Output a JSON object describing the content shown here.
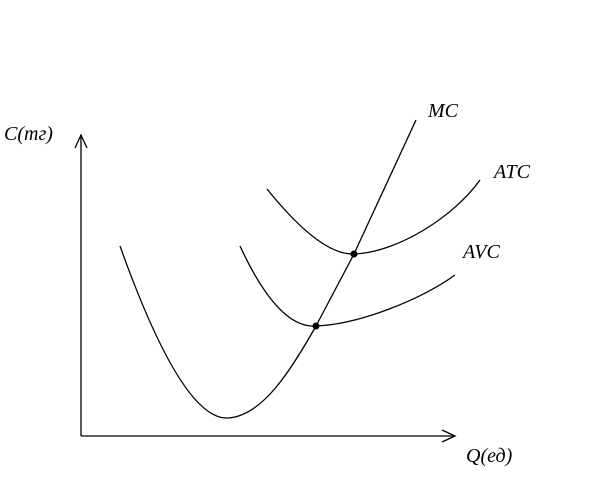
{
  "axes": {
    "y_label": "C(тг)",
    "x_label": "Q(ед)"
  },
  "curves": [
    {
      "label": "MC"
    },
    {
      "label": "ATC"
    },
    {
      "label": "AVC"
    }
  ]
}
